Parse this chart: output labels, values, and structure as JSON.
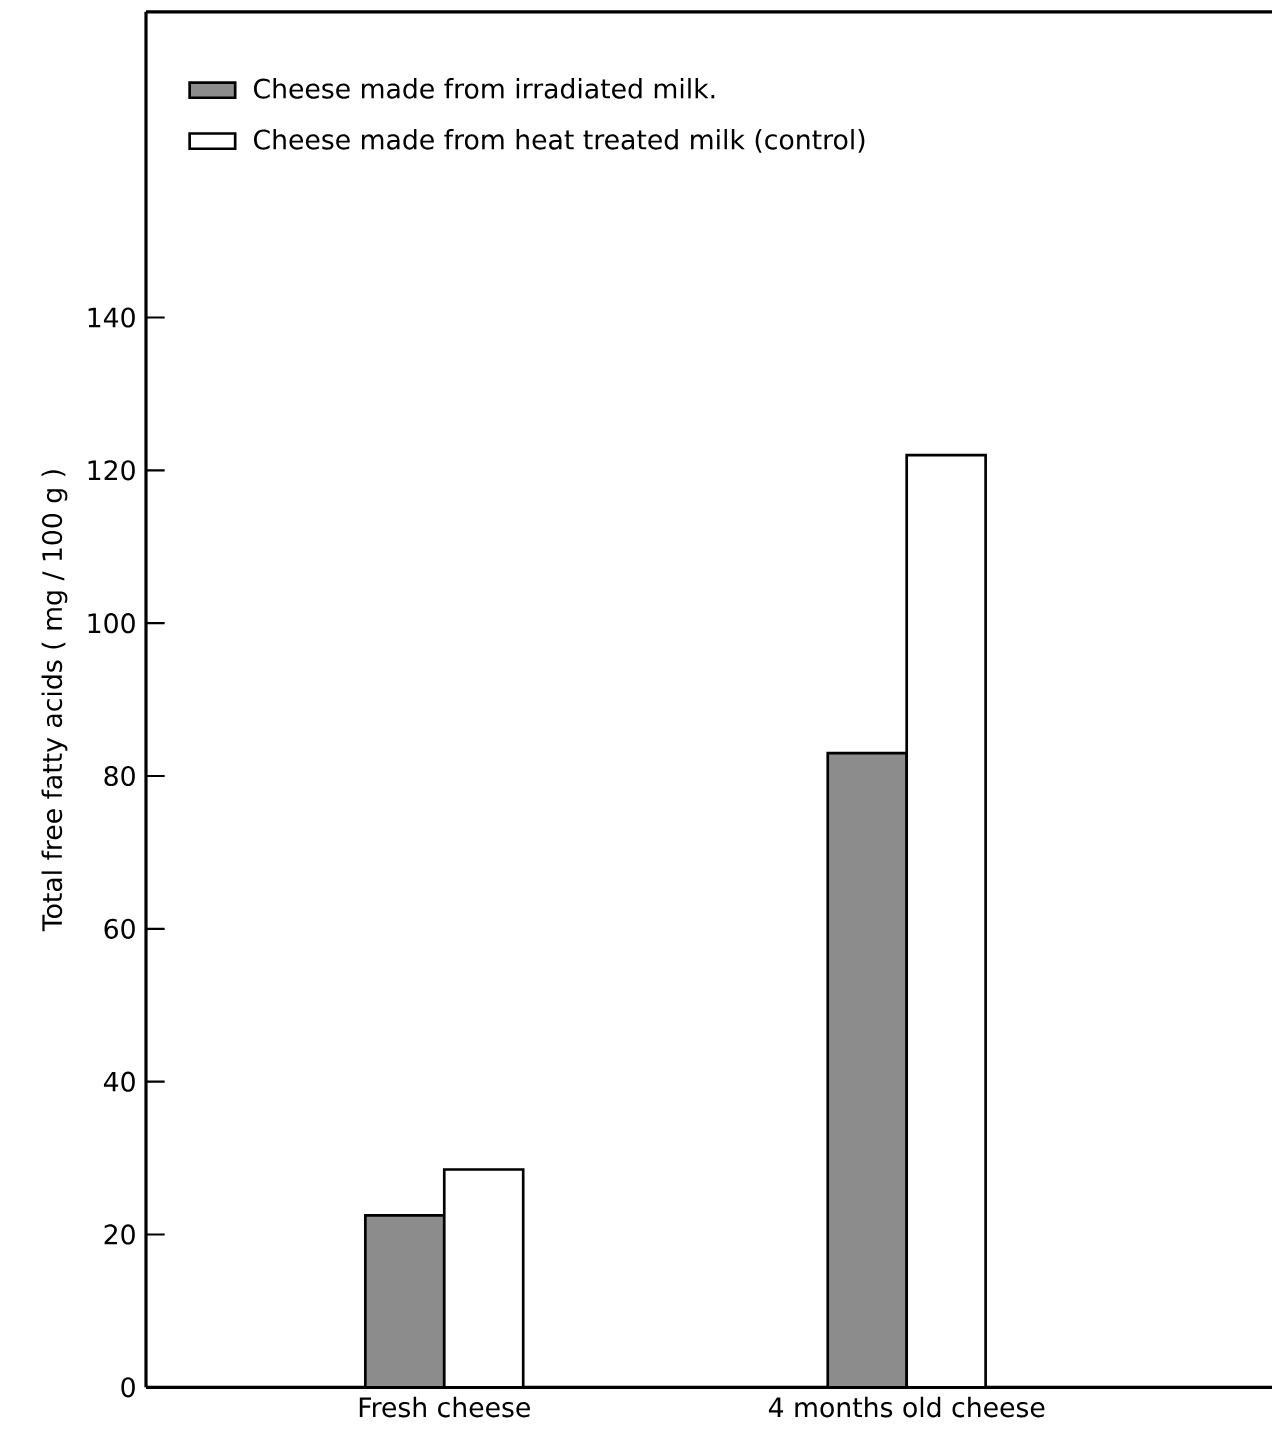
{
  "chart_data": {
    "type": "bar",
    "ylabel": "Total free fatty acids ( mg / 100 g )",
    "categories": [
      "Fresh cheese",
      "4 months old cheese"
    ],
    "series": [
      {
        "name": "Cheese made from irradiated milk.",
        "color": "#8c8c8c",
        "values": [
          22.5,
          83
        ]
      },
      {
        "name": "Cheese made from heat treated milk (control)",
        "color": "#ffffff",
        "values": [
          28.5,
          122
        ]
      }
    ],
    "ylim": [
      0,
      180
    ],
    "yticks": [
      0,
      20,
      40,
      60,
      80,
      100,
      120,
      140
    ],
    "grid": false,
    "legend": "top left"
  }
}
